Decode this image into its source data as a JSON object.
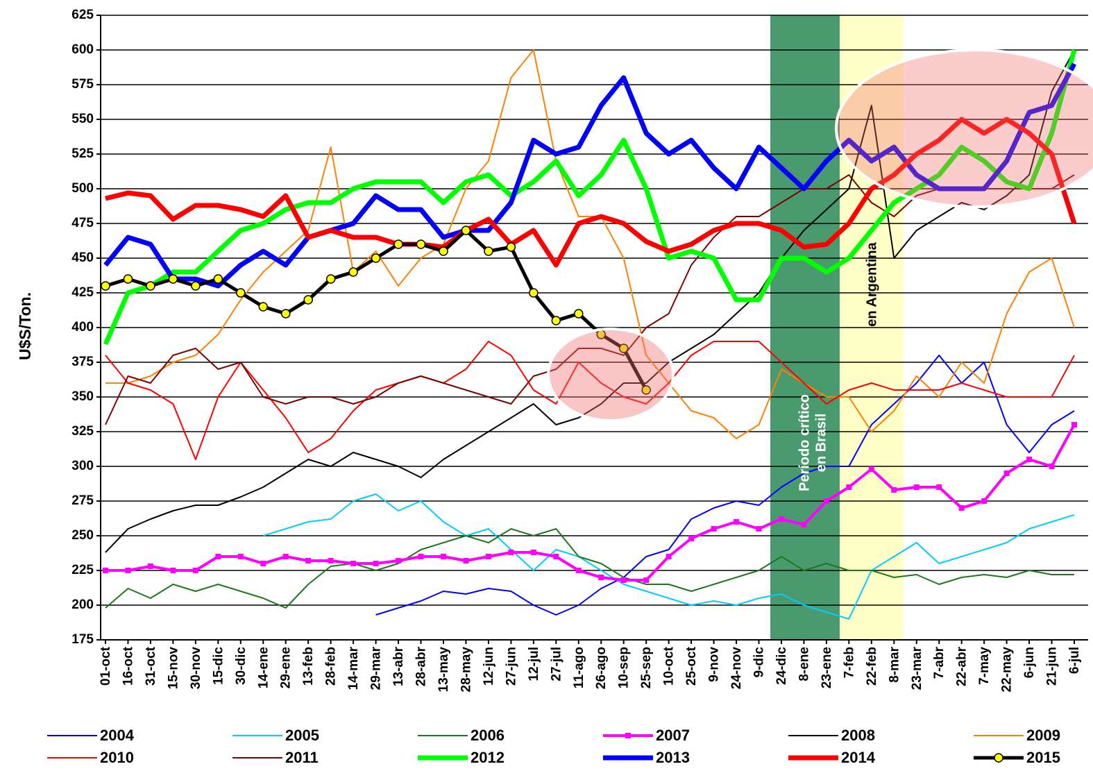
{
  "chart_data": {
    "type": "line",
    "y_label": "U$S/Ton.",
    "annotations": {
      "brasil": [
        "Período crítico",
        "en Brasil"
      ],
      "argentina": [
        "en Argentina"
      ]
    },
    "categories": [
      "01-oct",
      "16-oct",
      "31-oct",
      "15-nov",
      "30-nov",
      "15-dic",
      "30-dic",
      "14-ene",
      "29-ene",
      "13-feb",
      "28-feb",
      "14-mar",
      "29-mar",
      "13-abr",
      "28-abr",
      "13-may",
      "28-may",
      "12-jun",
      "27-jun",
      "12-jul",
      "27-jul",
      "11-ago",
      "26-ago",
      "10-sep",
      "25-sep",
      "10-oct",
      "25-oct",
      "9-nov",
      "24-nov",
      "9-dic",
      "24-dic",
      "8-ene",
      "23-ene",
      "7-feb",
      "22-feb",
      "8-mar",
      "23-mar",
      "7-abr",
      "22-abr",
      "7-may",
      "22-may",
      "6-jun",
      "21-jun",
      "6-jul"
    ],
    "ylim": [
      175,
      625
    ],
    "yticks": [
      175,
      200,
      225,
      250,
      275,
      300,
      325,
      350,
      375,
      400,
      425,
      450,
      475,
      500,
      525,
      550,
      575,
      600,
      625
    ],
    "grid": true,
    "series": [
      {
        "name": "2004",
        "color": "#0000ff",
        "width": 2,
        "marker": "none",
        "values": [
          null,
          null,
          null,
          null,
          null,
          null,
          null,
          null,
          null,
          null,
          null,
          null,
          193,
          198,
          203,
          210,
          208,
          212,
          210,
          200,
          193,
          200,
          212,
          220,
          235,
          240,
          262,
          270,
          275,
          272,
          285,
          295,
          300,
          300,
          330,
          345,
          360,
          380,
          360,
          375,
          330,
          310,
          330,
          340
        ]
      },
      {
        "name": "2005",
        "color": "#00ccff",
        "width": 2,
        "marker": "none",
        "values": [
          null,
          null,
          null,
          null,
          null,
          null,
          null,
          250,
          255,
          260,
          262,
          275,
          280,
          268,
          275,
          260,
          250,
          255,
          240,
          225,
          240,
          235,
          225,
          215,
          210,
          205,
          200,
          203,
          200,
          205,
          208,
          200,
          195,
          190,
          225,
          235,
          245,
          230,
          235,
          240,
          245,
          255,
          260,
          265
        ]
      },
      {
        "name": "2006",
        "color": "#1a7a1a",
        "width": 2,
        "marker": "none",
        "values": [
          198,
          212,
          205,
          215,
          210,
          215,
          210,
          205,
          198,
          215,
          228,
          230,
          225,
          230,
          240,
          245,
          250,
          245,
          255,
          250,
          255,
          235,
          230,
          220,
          215,
          215,
          210,
          215,
          220,
          225,
          235,
          225,
          230,
          225,
          225,
          220,
          222,
          215,
          220,
          222,
          220,
          225,
          222,
          222
        ]
      },
      {
        "name": "2007",
        "color": "#ff00ff",
        "width": 4,
        "marker": "square",
        "values": [
          225,
          225,
          228,
          225,
          225,
          235,
          235,
          230,
          235,
          232,
          232,
          230,
          230,
          232,
          235,
          235,
          232,
          235,
          238,
          238,
          235,
          225,
          220,
          218,
          218,
          235,
          248,
          255,
          260,
          255,
          262,
          258,
          275,
          285,
          298,
          283,
          285,
          285,
          270,
          275,
          295,
          305,
          300,
          330
        ]
      },
      {
        "name": "2008",
        "color": "#000000",
        "width": 2,
        "marker": "none",
        "values": [
          238,
          255,
          262,
          268,
          272,
          272,
          278,
          285,
          295,
          305,
          300,
          310,
          305,
          300,
          292,
          305,
          315,
          325,
          335,
          345,
          330,
          335,
          345,
          360,
          360,
          375,
          385,
          395,
          410,
          425,
          450,
          470,
          485,
          500,
          560,
          450,
          470,
          480,
          490,
          485,
          495,
          510,
          570,
          600
        ]
      },
      {
        "name": "2009",
        "color": "#ff8000",
        "width": 2,
        "marker": "none",
        "values": [
          360,
          360,
          365,
          375,
          380,
          395,
          420,
          440,
          455,
          470,
          530,
          440,
          455,
          430,
          450,
          460,
          500,
          520,
          580,
          600,
          520,
          480,
          480,
          450,
          380,
          360,
          340,
          335,
          320,
          330,
          370,
          360,
          350,
          350,
          325,
          340,
          365,
          350,
          375,
          360,
          410,
          440,
          450,
          400
        ]
      },
      {
        "name": "2010",
        "color": "#ff0000",
        "width": 2,
        "marker": "none",
        "values": [
          380,
          360,
          355,
          345,
          305,
          350,
          375,
          355,
          335,
          310,
          320,
          340,
          355,
          360,
          365,
          360,
          370,
          390,
          380,
          355,
          345,
          375,
          360,
          350,
          345,
          360,
          380,
          390,
          390,
          390,
          375,
          360,
          345,
          355,
          360,
          355,
          355,
          355,
          360,
          355,
          350,
          350,
          350,
          380
        ]
      },
      {
        "name": "2011",
        "color": "#800000",
        "width": 2,
        "marker": "none",
        "values": [
          330,
          365,
          360,
          380,
          385,
          370,
          375,
          350,
          345,
          350,
          350,
          345,
          350,
          360,
          365,
          360,
          355,
          350,
          345,
          365,
          370,
          385,
          385,
          380,
          400,
          410,
          445,
          465,
          480,
          480,
          490,
          500,
          500,
          510,
          490,
          480,
          495,
          500,
          500,
          500,
          500,
          500,
          500,
          510
        ]
      },
      {
        "name": "2012",
        "color": "#00ff00",
        "width": 7,
        "marker": "none",
        "values": [
          388,
          425,
          430,
          440,
          440,
          455,
          470,
          475,
          485,
          490,
          490,
          500,
          505,
          505,
          505,
          490,
          505,
          510,
          495,
          505,
          520,
          495,
          510,
          535,
          500,
          450,
          455,
          450,
          420,
          420,
          450,
          450,
          440,
          450,
          470,
          490,
          500,
          510,
          530,
          520,
          505,
          500,
          540,
          600
        ]
      },
      {
        "name": "2013",
        "color": "#0000ff",
        "width": 7,
        "marker": "none",
        "values": [
          445,
          465,
          460,
          435,
          435,
          430,
          445,
          455,
          445,
          465,
          470,
          475,
          495,
          485,
          485,
          465,
          470,
          470,
          490,
          535,
          525,
          530,
          560,
          580,
          540,
          525,
          535,
          515,
          500,
          530,
          515,
          500,
          520,
          535,
          520,
          530,
          510,
          500,
          500,
          500,
          520,
          555,
          560,
          590
        ]
      },
      {
        "name": "2014",
        "color": "#ff0000",
        "width": 7,
        "marker": "none",
        "values": [
          493,
          497,
          495,
          478,
          488,
          488,
          485,
          480,
          495,
          465,
          470,
          465,
          465,
          460,
          460,
          458,
          470,
          478,
          460,
          470,
          445,
          475,
          480,
          475,
          462,
          455,
          460,
          470,
          475,
          475,
          470,
          458,
          460,
          475,
          500,
          510,
          525,
          535,
          550,
          540,
          550,
          540,
          525,
          475
        ]
      },
      {
        "name": "2015",
        "color": "#000000",
        "width": 5,
        "marker": "circle",
        "marker_color": "#ffff00",
        "values": [
          430,
          435,
          430,
          435,
          430,
          435,
          425,
          415,
          410,
          420,
          435,
          440,
          450,
          460,
          460,
          455,
          470,
          455,
          458,
          425,
          405,
          410,
          395,
          385,
          355,
          null,
          null,
          null,
          null,
          null,
          null,
          null,
          null,
          null,
          null,
          null,
          null,
          null,
          null,
          null,
          null,
          null,
          null,
          null
        ]
      }
    ]
  }
}
